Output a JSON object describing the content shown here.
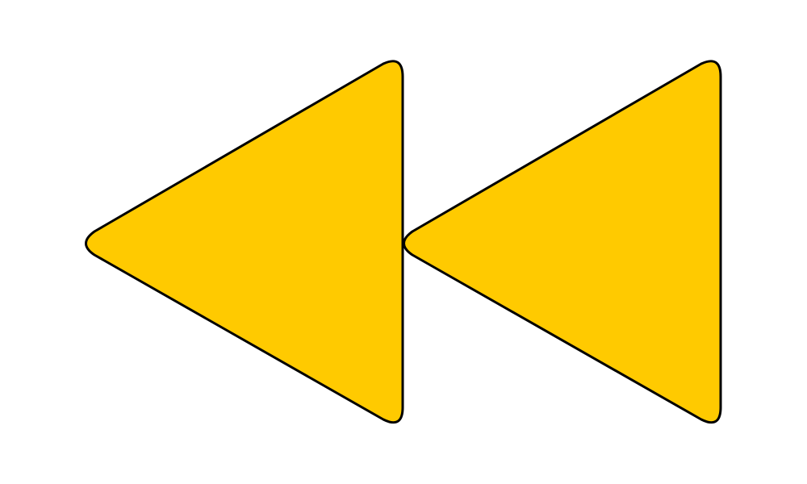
{
  "icon": {
    "name": "rewind-icon",
    "fill_color": "#FFCA00",
    "stroke_color": "#000000",
    "background_color": "#FFFFFF"
  }
}
